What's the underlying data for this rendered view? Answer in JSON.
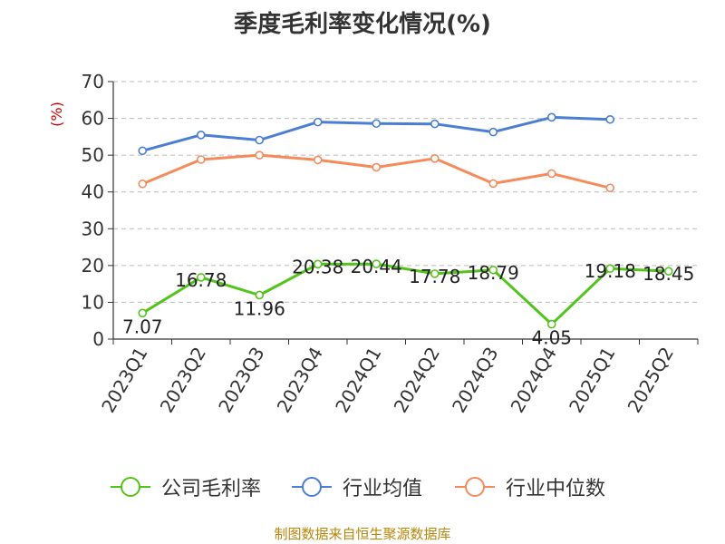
{
  "chart_data": {
    "type": "line",
    "title": "季度毛利率变化情况(%)",
    "ylabel": "(%)",
    "xlabel": "",
    "ylim": [
      0,
      70
    ],
    "yticks": [
      0,
      10,
      20,
      30,
      40,
      50,
      60,
      70
    ],
    "grid": true,
    "legend_position": "bottom",
    "categories": [
      "2023Q1",
      "2023Q2",
      "2023Q3",
      "2023Q4",
      "2024Q1",
      "2024Q2",
      "2024Q3",
      "2024Q4",
      "2025Q1",
      "2025Q2"
    ],
    "series": [
      {
        "name": "公司毛利率",
        "color": "#52c41a",
        "values": [
          7.07,
          16.78,
          11.96,
          20.38,
          20.44,
          17.78,
          18.79,
          4.05,
          19.18,
          18.45
        ],
        "labels": [
          "7.07",
          "16.78",
          "11.96",
          "20.38",
          "20.44",
          "17.78",
          "18.79",
          "4.05",
          "19.18",
          "18.45"
        ]
      },
      {
        "name": "行业均值",
        "color": "#4a7fd4",
        "values": [
          51.2,
          55.5,
          54.1,
          59.0,
          58.6,
          58.5,
          56.3,
          60.3,
          59.7,
          null
        ]
      },
      {
        "name": "行业中位数",
        "color": "#f58b5b",
        "values": [
          42.2,
          48.8,
          50.0,
          48.7,
          46.7,
          49.1,
          42.3,
          45.0,
          41.1,
          null
        ]
      }
    ]
  },
  "source": "制图数据来自恒生聚源数据库"
}
